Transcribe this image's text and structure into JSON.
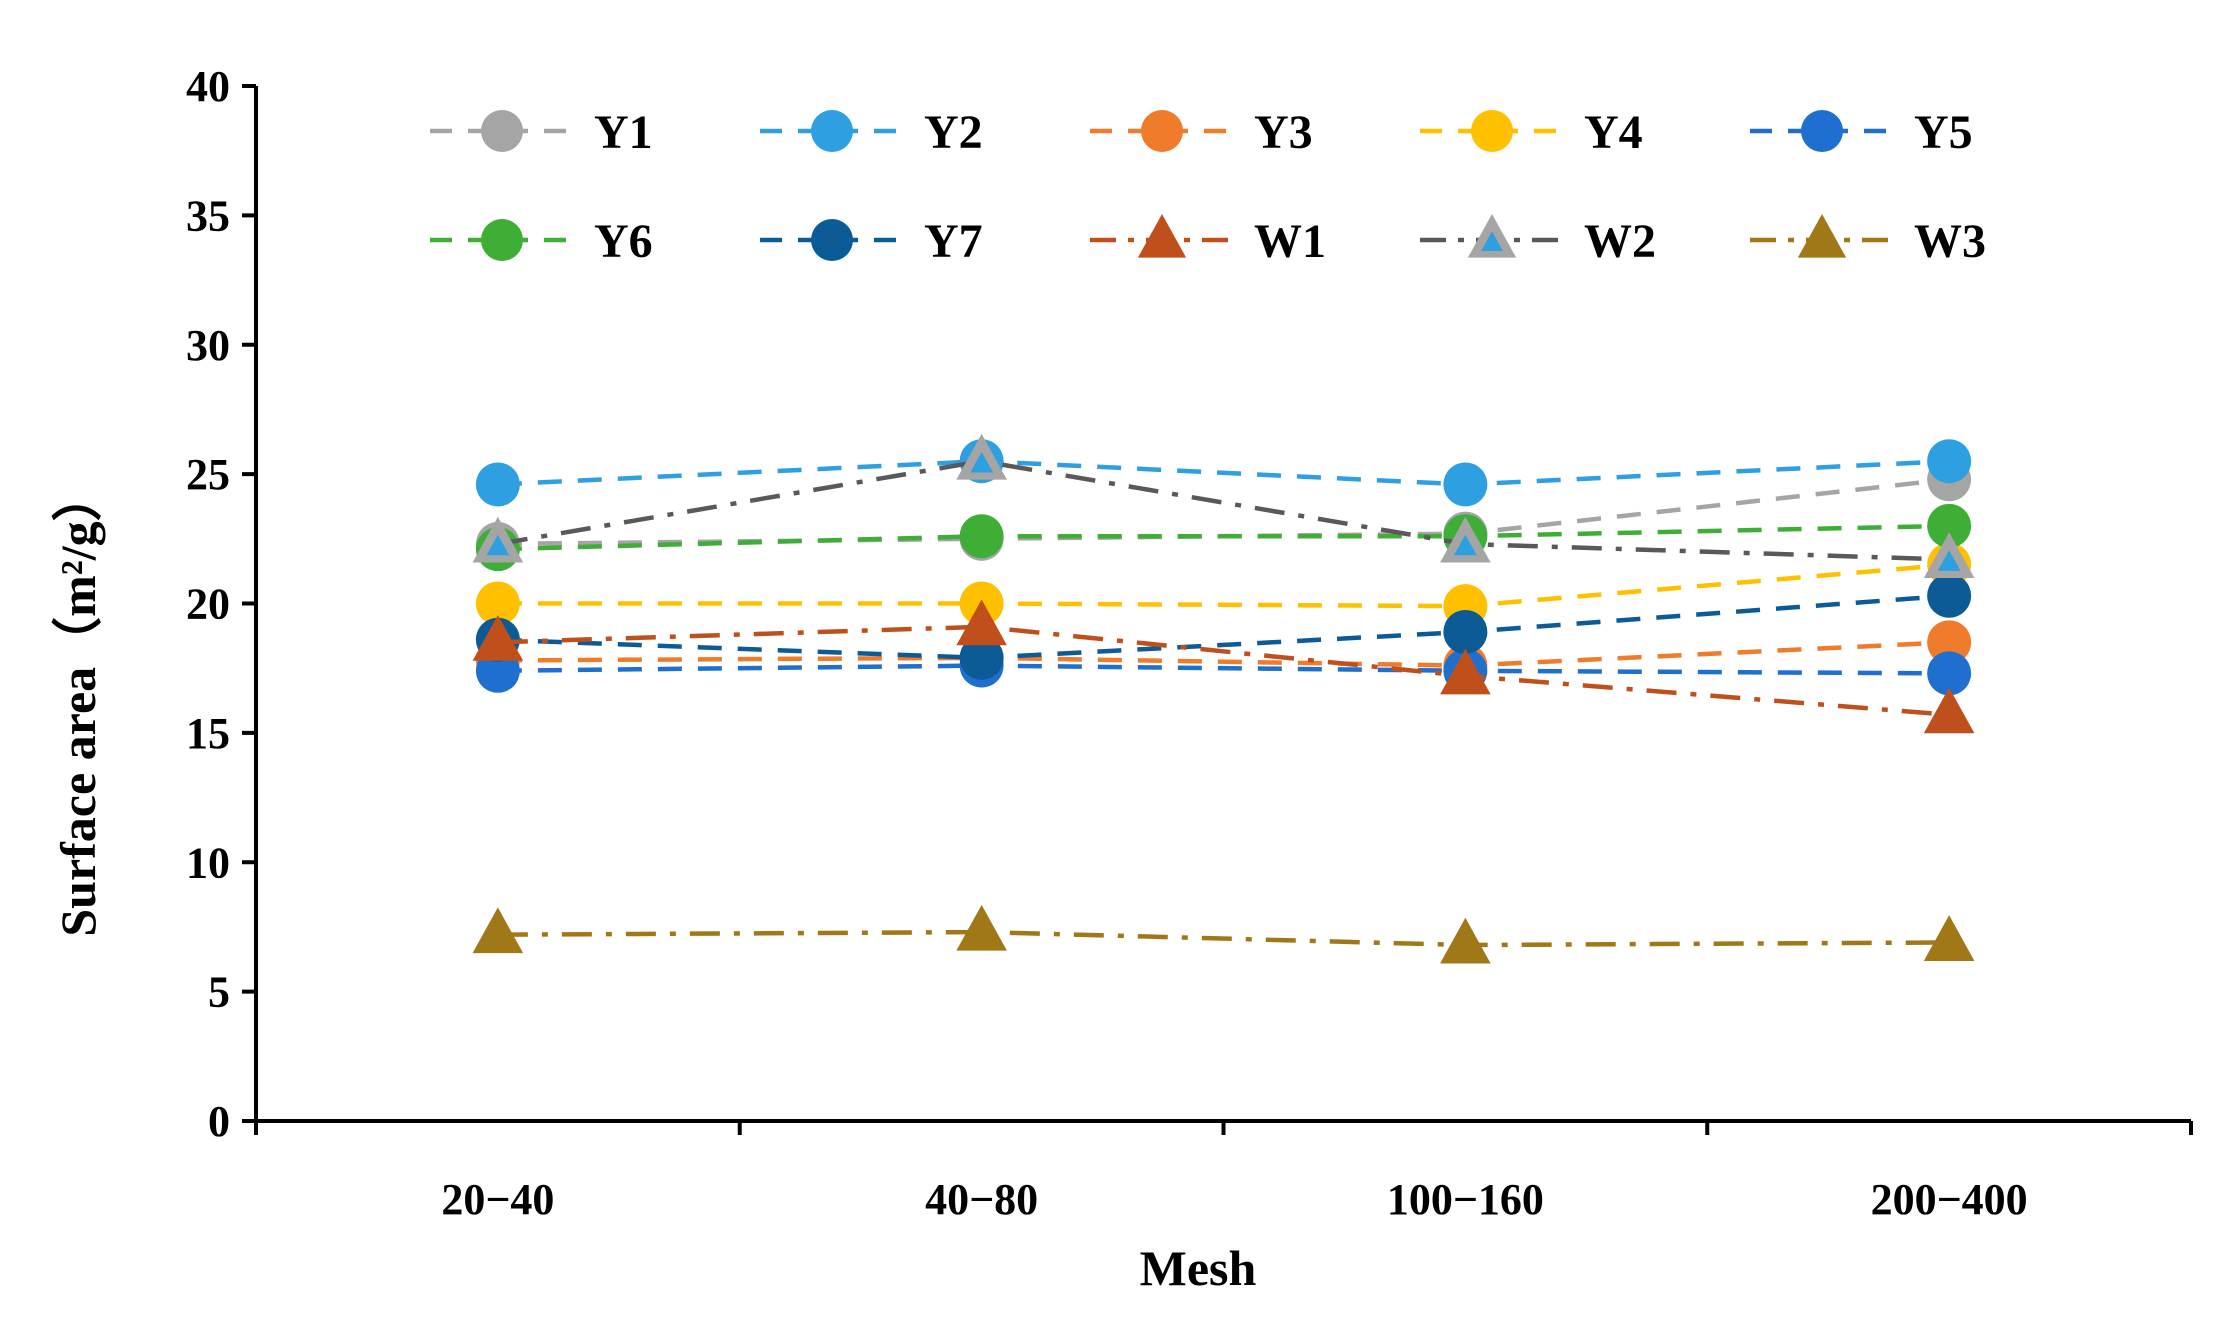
{
  "chart_data": {
    "type": "line",
    "title": "",
    "xlabel": "Mesh",
    "ylabel": "Surface area（m²/g）",
    "categories": [
      "20−40",
      "40−80",
      "100−160",
      "200−400"
    ],
    "ylim": [
      0,
      40
    ],
    "yticks": [
      0,
      5,
      10,
      15,
      20,
      25,
      30,
      35,
      40
    ],
    "grid": false,
    "legend_position": "top",
    "series": [
      {
        "name": "Y1",
        "values": [
          22.3,
          22.5,
          22.7,
          24.8
        ],
        "color": "#A5A5A5",
        "marker": "circle",
        "dash": "dash"
      },
      {
        "name": "Y2",
        "values": [
          24.6,
          25.5,
          24.6,
          25.5
        ],
        "color": "#2E9FE0",
        "marker": "circle",
        "dash": "dash"
      },
      {
        "name": "Y3",
        "values": [
          17.8,
          17.9,
          17.6,
          18.5
        ],
        "color": "#F07B2B",
        "marker": "circle",
        "dash": "dash"
      },
      {
        "name": "Y4",
        "values": [
          20.0,
          20.0,
          19.9,
          21.5
        ],
        "color": "#FFC000",
        "marker": "circle",
        "dash": "dash"
      },
      {
        "name": "Y5",
        "values": [
          17.4,
          17.6,
          17.4,
          17.3
        ],
        "color": "#1F6FD1",
        "marker": "circle",
        "dash": "dash"
      },
      {
        "name": "Y6",
        "values": [
          22.1,
          22.6,
          22.6,
          23.0
        ],
        "color": "#3FAE36",
        "marker": "circle",
        "dash": "dash"
      },
      {
        "name": "Y7",
        "values": [
          18.6,
          17.9,
          18.9,
          20.3
        ],
        "color": "#0C5A96",
        "marker": "circle",
        "dash": "dash"
      },
      {
        "name": "W1",
        "values": [
          18.5,
          19.1,
          17.2,
          15.7
        ],
        "color": "#C0501B",
        "marker": "triangle",
        "dash": "dashdot"
      },
      {
        "name": "W2",
        "values": [
          22.3,
          25.5,
          22.3,
          21.7
        ],
        "color": "#595959",
        "marker": "triangle-open",
        "dash": "dashdot",
        "marker_fill": "#A5A5A5",
        "marker_inner": "#2E9FE0"
      },
      {
        "name": "W3",
        "values": [
          7.2,
          7.3,
          6.8,
          6.9
        ],
        "color": "#A07818",
        "marker": "triangle",
        "dash": "dashdot"
      }
    ]
  }
}
